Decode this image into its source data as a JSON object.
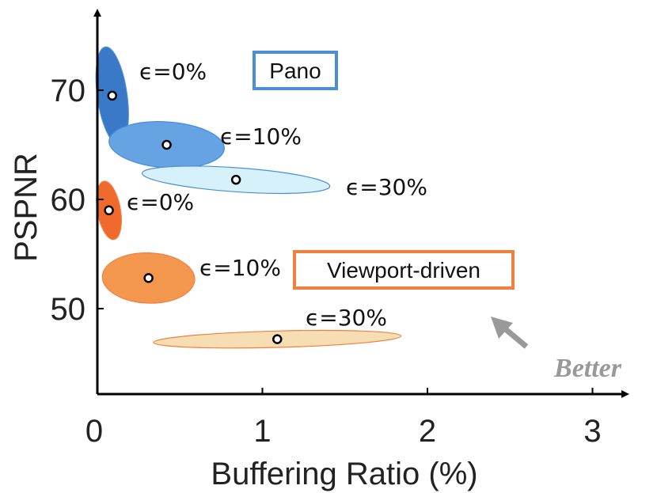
{
  "chart_data": {
    "type": "scatter",
    "title": "",
    "xlabel": "Buffering Ratio (%)",
    "ylabel": "PSPNR",
    "xlim": [
      0,
      3.2
    ],
    "ylim": [
      42,
      77
    ],
    "xticks": [
      0,
      1,
      2,
      3
    ],
    "yticks": [
      50,
      60,
      70
    ],
    "grid": false,
    "legend_position": "inline",
    "series": [
      {
        "name": "Pano",
        "color": "#4a8fd6",
        "points": [
          {
            "label": "ϵ=0%",
            "x": 0.09,
            "y": 69.5,
            "rx": 0.09,
            "ry": 4.5,
            "angle": -8,
            "fill": "#3a78c8"
          },
          {
            "label": "ϵ=10%",
            "x": 0.42,
            "y": 65.0,
            "rx": 0.35,
            "ry": 2.1,
            "angle": 4,
            "fill": "#65a3e3"
          },
          {
            "label": "ϵ=30%",
            "x": 0.84,
            "y": 61.8,
            "rx": 0.57,
            "ry": 1.1,
            "angle": 4,
            "fill": "#d6f1f9"
          }
        ]
      },
      {
        "name": "Viewport-driven",
        "color": "#f08040",
        "points": [
          {
            "label": "ϵ=0%",
            "x": 0.07,
            "y": 59.0,
            "rx": 0.07,
            "ry": 2.7,
            "angle": -10,
            "fill": "#f06a2e"
          },
          {
            "label": "ϵ=10%",
            "x": 0.31,
            "y": 52.8,
            "rx": 0.28,
            "ry": 2.3,
            "angle": 2,
            "fill": "#f3974f"
          },
          {
            "label": "ϵ=30%",
            "x": 1.09,
            "y": 47.2,
            "rx": 0.75,
            "ry": 0.75,
            "angle": -1.5,
            "fill": "#f6ddb4"
          }
        ]
      }
    ],
    "annotation": {
      "text": "Better",
      "color": "#999999"
    }
  }
}
